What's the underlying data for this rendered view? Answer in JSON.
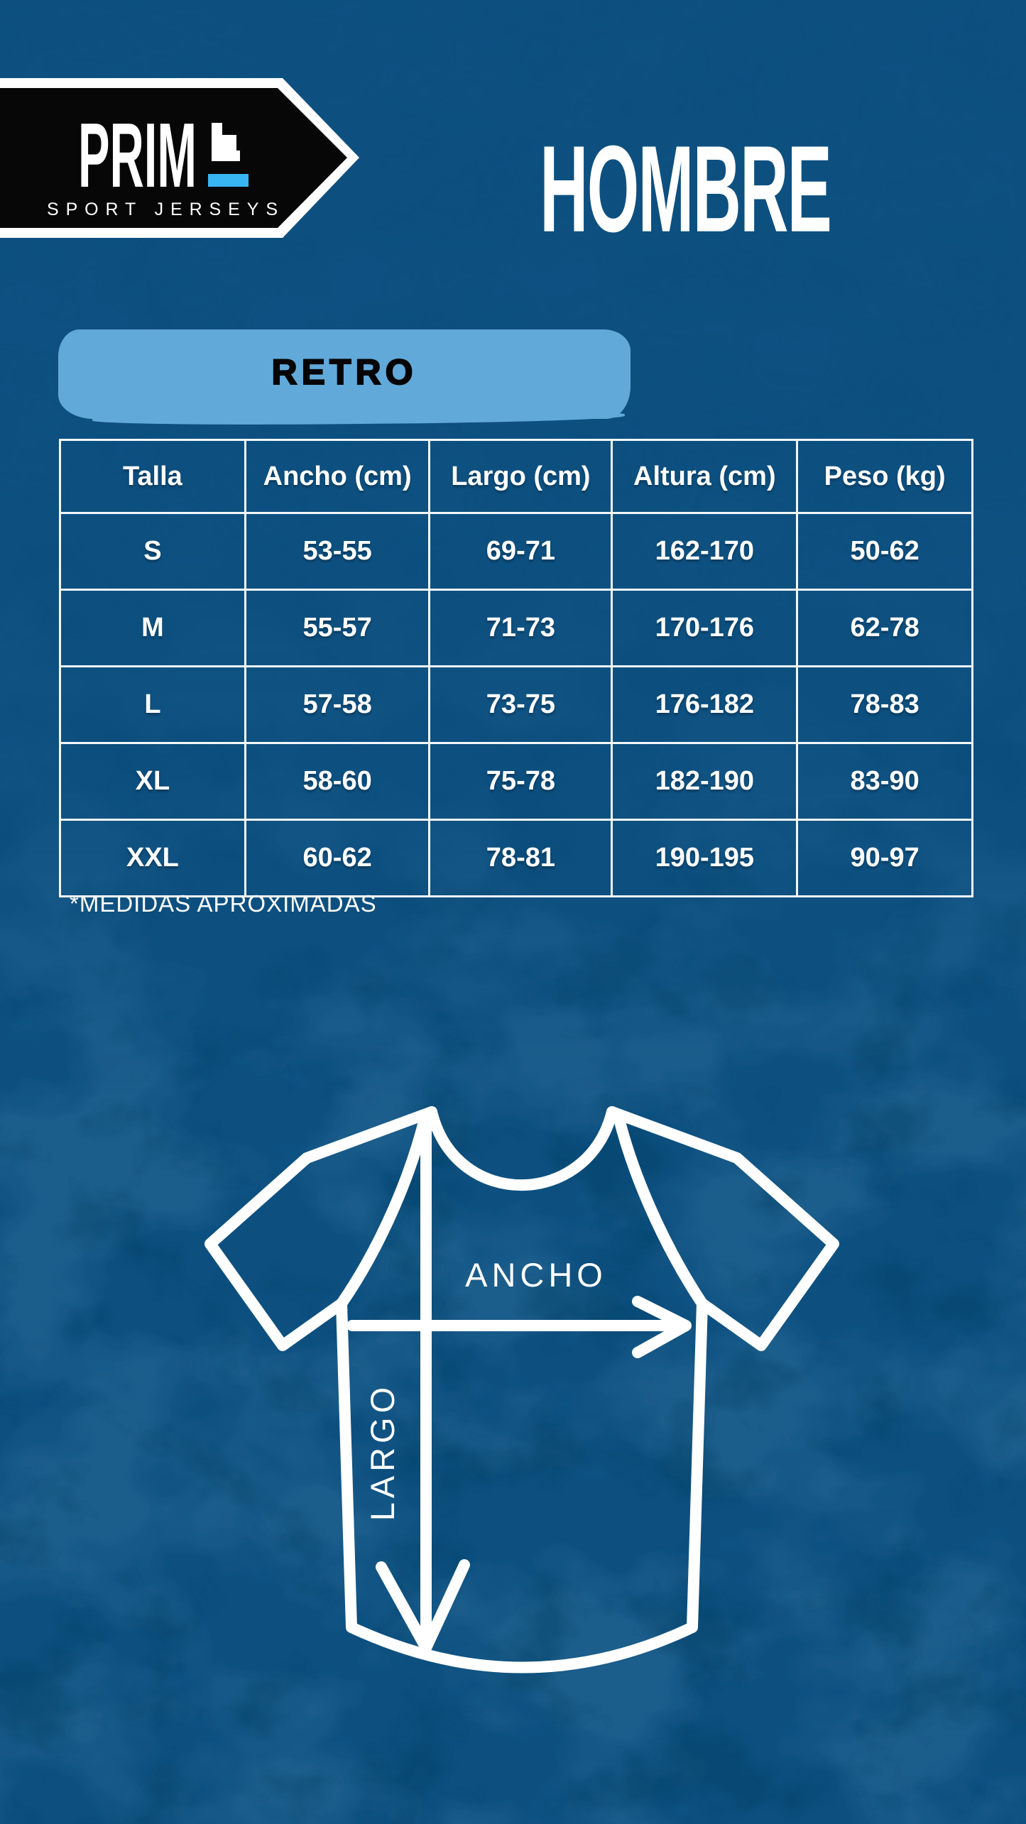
{
  "brand": {
    "name": "PRIME",
    "name_display": "PRIM",
    "tagline": "SPORT JERSEYS"
  },
  "title": "HOMBRE",
  "category": "RETRO",
  "size_table": {
    "columns": [
      "Talla",
      "Ancho (cm)",
      "Largo (cm)",
      "Altura (cm)",
      "Peso (kg)"
    ],
    "rows": [
      [
        "S",
        "53-55",
        "69-71",
        "162-170",
        "50-62"
      ],
      [
        "M",
        "55-57",
        "71-73",
        "170-176",
        "62-78"
      ],
      [
        "L",
        "57-58",
        "73-75",
        "176-182",
        "78-83"
      ],
      [
        "XL",
        "58-60",
        "75-78",
        "182-190",
        "83-90"
      ],
      [
        "XXL",
        "60-62",
        "78-81",
        "190-195",
        "90-97"
      ]
    ]
  },
  "footnote": "*MEDIDAS APROXIMADAS",
  "diagram": {
    "width_label": "ANCHO",
    "length_label": "LARGO"
  },
  "colors": {
    "background": "#0D5080",
    "texture_light": "#2E6F9B",
    "texture_dark": "#083D60",
    "banner_blue": "#61A9D9",
    "accent_blue": "#38B5F3",
    "logo_black": "#070707",
    "text_white": "#FFFFFF"
  }
}
